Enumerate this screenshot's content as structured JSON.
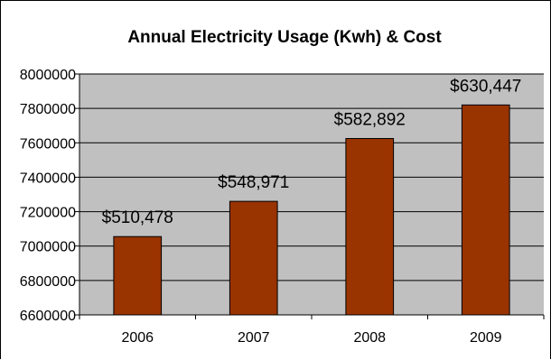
{
  "chart_data": {
    "type": "bar",
    "title": "Annual Electricity Usage (Kwh) & Cost",
    "xlabel": "",
    "ylabel": "",
    "categories": [
      "2006",
      "2007",
      "2008",
      "2009"
    ],
    "values": [
      7055000,
      7260000,
      7625000,
      7820000
    ],
    "data_labels": [
      "$510,478",
      "$548,971",
      "$582,892",
      "$630,447"
    ],
    "ylim": [
      6600000,
      8000000
    ],
    "yticks": [
      6600000,
      6800000,
      7000000,
      7200000,
      7400000,
      7600000,
      7800000,
      8000000
    ],
    "ytick_labels": [
      "6600000",
      "6800000",
      "7000000",
      "7200000",
      "7400000",
      "7600000",
      "7800000",
      "8000000"
    ],
    "grid": true,
    "legend": "none",
    "colors": {
      "bar": "#993300",
      "plot_background": "#c0c0c0",
      "gridline": "#000000",
      "axis": "#000000"
    }
  }
}
